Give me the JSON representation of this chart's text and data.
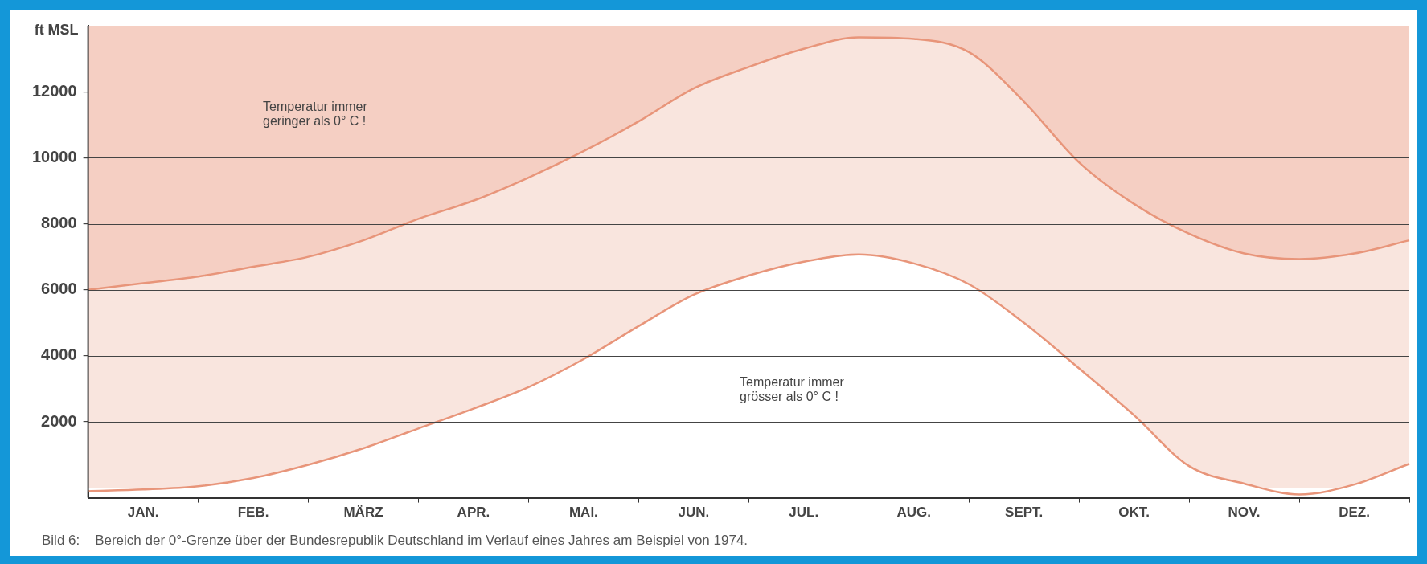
{
  "chart_data": {
    "type": "area",
    "ylabel": "ft MSL",
    "categories": [
      null,
      "JAN.",
      null,
      "FEB.",
      null,
      "MÄRZ",
      null,
      "APR.",
      null,
      "MAI.",
      null,
      "JUN.",
      null,
      "JUL.",
      null,
      "AUG.",
      null,
      "SEPT.",
      null,
      "OKT.",
      null,
      "NOV.",
      null,
      "DEZ.",
      null
    ],
    "ylim": [
      -300,
      14000
    ],
    "yticks": [
      2000,
      4000,
      6000,
      8000,
      10000,
      12000
    ],
    "grid": "y",
    "legend": false,
    "marker": "none",
    "series": [
      {
        "color": "#e8957a",
        "values": [
          6000,
          6200,
          6400,
          6700,
          7000,
          7500,
          8150,
          8700,
          9400,
          10200,
          11100,
          12100,
          12750,
          13300,
          13650,
          13600,
          13200,
          11700,
          9860,
          8600,
          7700,
          7100,
          6930,
          7100,
          7500
        ]
      },
      {
        "color": "#e8957a",
        "values": [
          -100,
          -50,
          50,
          300,
          700,
          1200,
          1800,
          2400,
          3050,
          3900,
          4900,
          5850,
          6430,
          6850,
          7070,
          6800,
          6170,
          5000,
          3620,
          2200,
          660,
          130,
          -200,
          100,
          730
        ]
      }
    ],
    "annotations": [
      "Temperatur immer\ngeringer als 0° C !",
      "Temperatur immer\ngrösser als 0° C !",
      "Bild 6:    Bereich der 0°-Grenze über der Bundesrepublik Deutschland im Verlauf eines Jahres am Beispiel von 1974."
    ]
  }
}
